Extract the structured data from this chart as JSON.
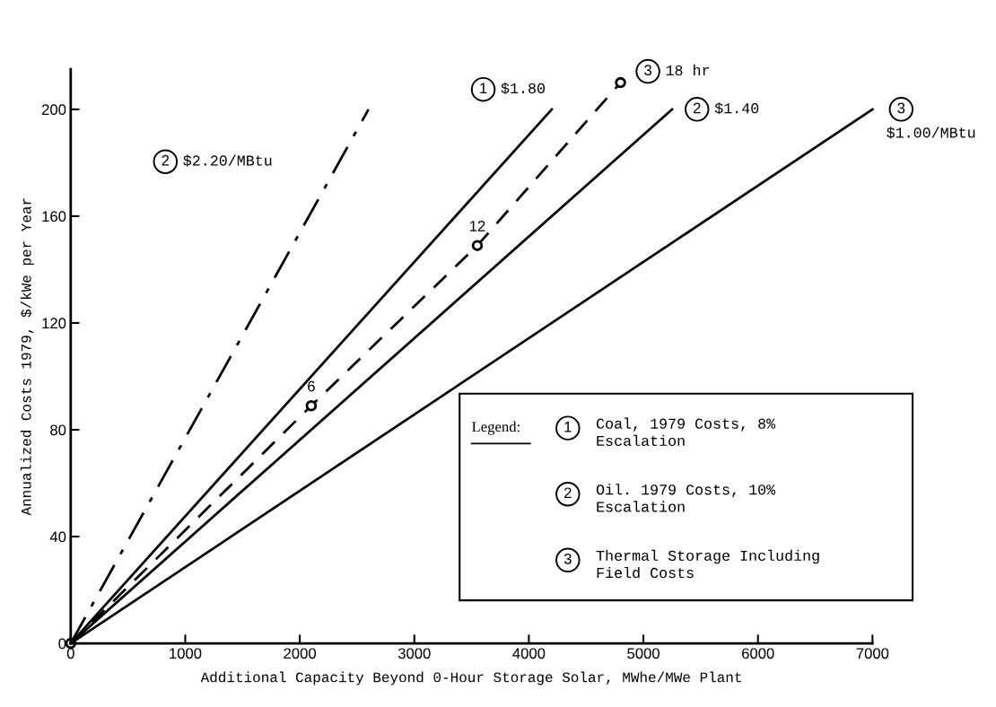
{
  "chart_data": {
    "type": "line",
    "xlabel": "Additional Capacity Beyond 0-Hour Storage Solar, MWhe/MWe Plant",
    "ylabel": "Annualized Costs 1979, $/kWe per Year",
    "xlim": [
      0,
      7000
    ],
    "xticks": [
      0,
      1000,
      2000,
      3000,
      4000,
      5000,
      6000,
      7000
    ],
    "ylim": [
      0,
      215
    ],
    "yticks": [
      0,
      40,
      80,
      120,
      160,
      200
    ],
    "grid": false,
    "legend": "top right",
    "series": [
      {
        "name": "$2.20/MBtu",
        "color": "#000000",
        "line_style": "dashdot",
        "x": [
          0,
          2600
        ],
        "values": [
          0,
          200
        ]
      },
      {
        "name": "$1.80",
        "color": "#000000",
        "line_style": "solid",
        "x": [
          0,
          4200
        ],
        "values": [
          0,
          200
        ]
      },
      {
        "name": "$1.40",
        "color": "#000000",
        "line_style": "solid",
        "x": [
          0,
          5250
        ],
        "values": [
          0,
          200
        ]
      },
      {
        "name": "18 hr",
        "color": "#000000",
        "line_style": "dashed",
        "marker": "circle",
        "x": [
          0,
          2100,
          3550,
          4800
        ],
        "values": [
          0,
          89,
          149,
          210
        ]
      },
      {
        "name": "$1.00/MBtu",
        "color": "#000000",
        "line_style": "solid",
        "x": [
          0,
          7000
        ],
        "values": [
          0,
          200
        ]
      }
    ],
    "annotations": [
      "2",
      "1",
      "2",
      "3",
      "3",
      {
        "text": "6",
        "x": 2100,
        "y": 89
      },
      {
        "text": "12",
        "x": 3550,
        "y": 149
      },
      "Legend:",
      "1",
      "Coal, 1979 Costs, 8%\nEscalation",
      "2",
      "Oil. 1979 Costs, 10%\nEscalation",
      "3",
      "Thermal Storage Including\nField Costs"
    ]
  }
}
